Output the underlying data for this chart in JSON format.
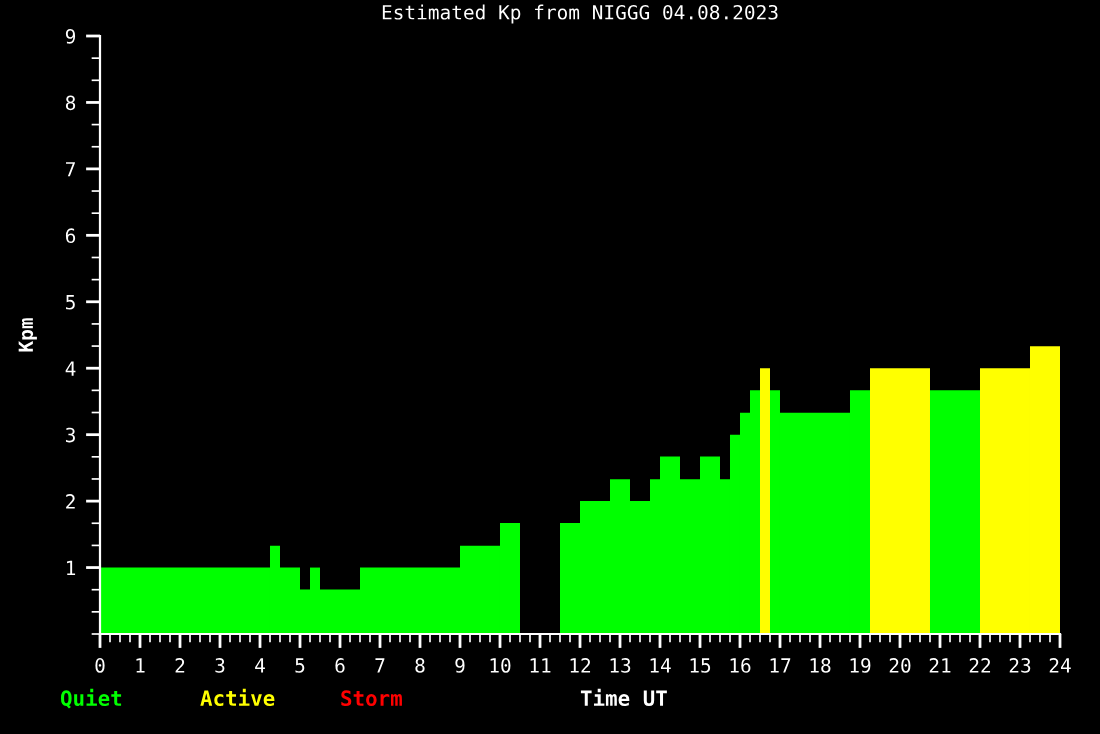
{
  "chart_data": {
    "type": "histogram",
    "title": "Estimated Kp from NIGGG 04.08.2023",
    "xlabel": "Time UT",
    "ylabel": "Kpm",
    "bins": [
      0,
      4.25,
      4.5,
      5,
      5.25,
      5.5,
      6.5,
      9,
      10,
      10.5,
      11.5,
      12,
      12.75,
      13.25,
      13.75,
      14,
      14.5,
      15,
      15.5,
      15.75,
      16,
      16.25,
      16.5,
      16.75,
      17,
      18.75,
      19.25,
      20.75,
      22,
      23.25,
      24
    ],
    "series": [
      {
        "name": "Quiet",
        "color": "#00ff00",
        "values": [
          1,
          1.33,
          1,
          0.67,
          1,
          0.67,
          1,
          1.33,
          1.67,
          null,
          1.67,
          2,
          2.33,
          2,
          2.33,
          2.67,
          2.33,
          2.67,
          2.33,
          3,
          3.33,
          3.67,
          null,
          3.67,
          3.33,
          3.67,
          null,
          3.67,
          null,
          null
        ]
      },
      {
        "name": "Active",
        "color": "#ffff00",
        "values": [
          null,
          null,
          null,
          null,
          null,
          null,
          null,
          null,
          null,
          null,
          null,
          null,
          null,
          null,
          null,
          null,
          null,
          null,
          null,
          null,
          null,
          null,
          4,
          null,
          null,
          null,
          4,
          null,
          4,
          4.33
        ]
      }
    ],
    "annotations": [
      "Storm"
    ],
    "xlim": [
      0,
      24
    ],
    "ylim": [
      0,
      9
    ],
    "xticks": [
      0,
      1,
      2,
      3,
      4,
      5,
      6,
      7,
      8,
      9,
      10,
      11,
      12,
      13,
      14,
      15,
      16,
      17,
      18,
      19,
      20,
      21,
      22,
      23,
      24
    ],
    "yticks": [
      1,
      2,
      3,
      4,
      5,
      6,
      7,
      8,
      9
    ],
    "legend": "bottom left",
    "grid": false
  }
}
